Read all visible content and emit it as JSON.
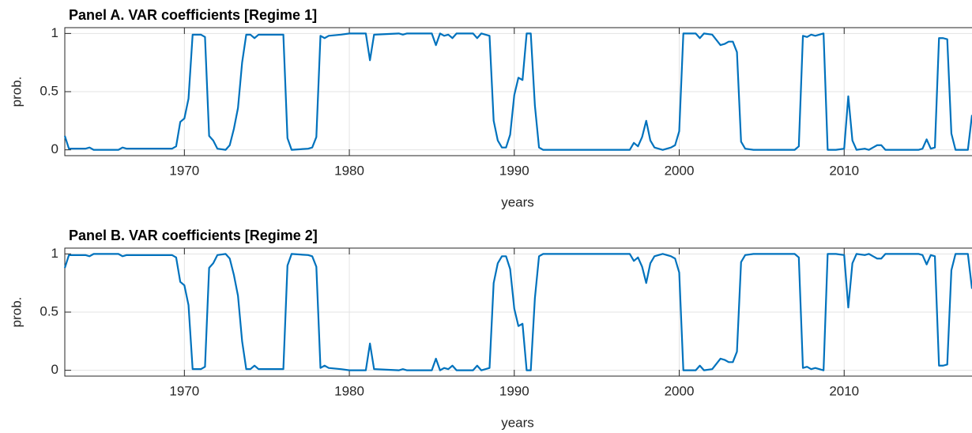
{
  "chart_data": [
    {
      "type": "line",
      "title": "Panel A. VAR coefficients [Regime 1]",
      "xlabel": "years",
      "ylabel": "prob.",
      "x": [
        1962.75,
        1963,
        1964,
        1964.25,
        1964.5,
        1966,
        1966.25,
        1966.5,
        1969.25,
        1969.5,
        1969.75,
        1970,
        1970.25,
        1970.5,
        1971,
        1971.25,
        1971.5,
        1971.75,
        1972,
        1972.5,
        1972.75,
        1973,
        1973.25,
        1973.5,
        1973.75,
        1974,
        1974.25,
        1974.5,
        1976,
        1976.25,
        1976.5,
        1977.5,
        1977.75,
        1978,
        1978.25,
        1978.5,
        1978.75,
        1979.5,
        1980,
        1981,
        1981.25,
        1981.5,
        1983,
        1983.25,
        1983.5,
        1985,
        1985.25,
        1985.5,
        1985.75,
        1986,
        1986.25,
        1986.5,
        1987.5,
        1987.75,
        1988,
        1988.5,
        1988.75,
        1989,
        1989.25,
        1989.5,
        1989.75,
        1990,
        1990.25,
        1990.5,
        1990.75,
        1991,
        1991.25,
        1991.5,
        1991.75,
        1997,
        1997.25,
        1997.5,
        1997.75,
        1998,
        1998.25,
        1998.5,
        1999,
        1999.5,
        1999.75,
        2000,
        2000.25,
        2001,
        2001.25,
        2001.5,
        2002,
        2002.5,
        2002.75,
        2003,
        2003.25,
        2003.5,
        2003.75,
        2004,
        2004.5,
        2007,
        2007.25,
        2007.5,
        2007.75,
        2008,
        2008.25,
        2008.5,
        2008.75,
        2009,
        2009.5,
        2010,
        2010.25,
        2010.5,
        2010.75,
        2011.25,
        2011.5,
        2011.75,
        2012,
        2012.25,
        2012.5,
        2014.5,
        2014.75,
        2015,
        2015.25,
        2015.5,
        2015.75,
        2016,
        2016.25,
        2016.5,
        2016.75,
        2017.5,
        2017.75
      ],
      "series": [
        {
          "color": "#0072BD",
          "values": [
            0.12,
            0.01,
            0.01,
            0.02,
            0.0,
            0.0,
            0.02,
            0.01,
            0.01,
            0.03,
            0.24,
            0.27,
            0.44,
            0.99,
            0.99,
            0.97,
            0.12,
            0.08,
            0.01,
            0.0,
            0.04,
            0.18,
            0.36,
            0.75,
            0.99,
            0.99,
            0.96,
            0.99,
            0.99,
            0.1,
            0.0,
            0.01,
            0.02,
            0.11,
            0.98,
            0.96,
            0.98,
            0.99,
            1.0,
            1.0,
            0.77,
            0.99,
            1.0,
            0.99,
            1.0,
            1.0,
            0.9,
            1.0,
            0.98,
            0.99,
            0.96,
            1.0,
            1.0,
            0.96,
            1.0,
            0.98,
            0.25,
            0.08,
            0.02,
            0.02,
            0.13,
            0.47,
            0.62,
            0.6,
            1.0,
            1.0,
            0.38,
            0.02,
            0.0,
            0.0,
            0.06,
            0.03,
            0.11,
            0.25,
            0.08,
            0.02,
            0.0,
            0.02,
            0.04,
            0.16,
            1.0,
            1.0,
            0.96,
            1.0,
            0.99,
            0.9,
            0.91,
            0.93,
            0.93,
            0.84,
            0.07,
            0.01,
            0.0,
            0.0,
            0.03,
            0.98,
            0.97,
            0.99,
            0.98,
            0.99,
            1.0,
            0.0,
            0.0,
            0.01,
            0.46,
            0.08,
            0.0,
            0.01,
            0.0,
            0.02,
            0.04,
            0.04,
            0.0,
            0.0,
            0.01,
            0.09,
            0.01,
            0.02,
            0.96,
            0.96,
            0.95,
            0.14,
            0.0,
            0.0,
            0.3
          ]
        }
      ],
      "xlim": [
        1962.75,
        2017.75
      ],
      "xticks": [
        1970,
        1980,
        1990,
        2000,
        2010
      ],
      "ylim": [
        -0.05,
        1.05
      ],
      "yticks": [
        0,
        0.5,
        1
      ],
      "grid": true
    },
    {
      "type": "line",
      "title": "Panel B. VAR coefficients [Regime 2]",
      "xlabel": "years",
      "ylabel": "prob.",
      "x": [
        1962.75,
        1963,
        1964,
        1964.25,
        1964.5,
        1966,
        1966.25,
        1966.5,
        1969.25,
        1969.5,
        1969.75,
        1970,
        1970.25,
        1970.5,
        1971,
        1971.25,
        1971.5,
        1971.75,
        1972,
        1972.5,
        1972.75,
        1973,
        1973.25,
        1973.5,
        1973.75,
        1974,
        1974.25,
        1974.5,
        1976,
        1976.25,
        1976.5,
        1977.5,
        1977.75,
        1978,
        1978.25,
        1978.5,
        1978.75,
        1979.5,
        1980,
        1981,
        1981.25,
        1981.5,
        1983,
        1983.25,
        1983.5,
        1985,
        1985.25,
        1985.5,
        1985.75,
        1986,
        1986.25,
        1986.5,
        1987.5,
        1987.75,
        1988,
        1988.5,
        1988.75,
        1989,
        1989.25,
        1989.5,
        1989.75,
        1990,
        1990.25,
        1990.5,
        1990.75,
        1991,
        1991.25,
        1991.5,
        1991.75,
        1997,
        1997.25,
        1997.5,
        1997.75,
        1998,
        1998.25,
        1998.5,
        1999,
        1999.5,
        1999.75,
        2000,
        2000.25,
        2001,
        2001.25,
        2001.5,
        2002,
        2002.5,
        2002.75,
        2003,
        2003.25,
        2003.5,
        2003.75,
        2004,
        2004.5,
        2007,
        2007.25,
        2007.5,
        2007.75,
        2008,
        2008.25,
        2008.5,
        2008.75,
        2009,
        2009.5,
        2010,
        2010.25,
        2010.5,
        2010.75,
        2011.25,
        2011.5,
        2011.75,
        2012,
        2012.25,
        2012.5,
        2014.5,
        2014.75,
        2015,
        2015.25,
        2015.5,
        2015.75,
        2016,
        2016.25,
        2016.5,
        2016.75,
        2017.5,
        2017.75
      ],
      "series": [
        {
          "color": "#0072BD",
          "values": [
            0.88,
            0.99,
            0.99,
            0.98,
            1.0,
            1.0,
            0.98,
            0.99,
            0.99,
            0.97,
            0.76,
            0.73,
            0.56,
            0.01,
            0.01,
            0.03,
            0.88,
            0.92,
            0.99,
            1.0,
            0.96,
            0.82,
            0.64,
            0.25,
            0.01,
            0.01,
            0.04,
            0.01,
            0.01,
            0.9,
            1.0,
            0.99,
            0.98,
            0.89,
            0.02,
            0.04,
            0.02,
            0.01,
            0.0,
            0.0,
            0.23,
            0.01,
            0.0,
            0.01,
            0.0,
            0.0,
            0.1,
            0.0,
            0.02,
            0.01,
            0.04,
            0.0,
            0.0,
            0.04,
            0.0,
            0.02,
            0.75,
            0.92,
            0.98,
            0.98,
            0.87,
            0.53,
            0.38,
            0.4,
            0.0,
            0.0,
            0.62,
            0.98,
            1.0,
            1.0,
            0.94,
            0.97,
            0.89,
            0.75,
            0.92,
            0.98,
            1.0,
            0.98,
            0.96,
            0.84,
            0.0,
            0.0,
            0.04,
            0.0,
            0.01,
            0.1,
            0.09,
            0.07,
            0.07,
            0.16,
            0.93,
            0.99,
            1.0,
            1.0,
            0.97,
            0.02,
            0.03,
            0.01,
            0.02,
            0.01,
            0.0,
            1.0,
            1.0,
            0.99,
            0.54,
            0.92,
            1.0,
            0.99,
            1.0,
            0.98,
            0.96,
            0.96,
            1.0,
            1.0,
            0.99,
            0.91,
            0.99,
            0.98,
            0.04,
            0.04,
            0.05,
            0.86,
            1.0,
            1.0,
            0.7
          ]
        }
      ],
      "xlim": [
        1962.75,
        2017.75
      ],
      "xticks": [
        1970,
        1980,
        1990,
        2000,
        2010
      ],
      "ylim": [
        -0.05,
        1.05
      ],
      "yticks": [
        0,
        0.5,
        1
      ],
      "grid": true
    }
  ]
}
